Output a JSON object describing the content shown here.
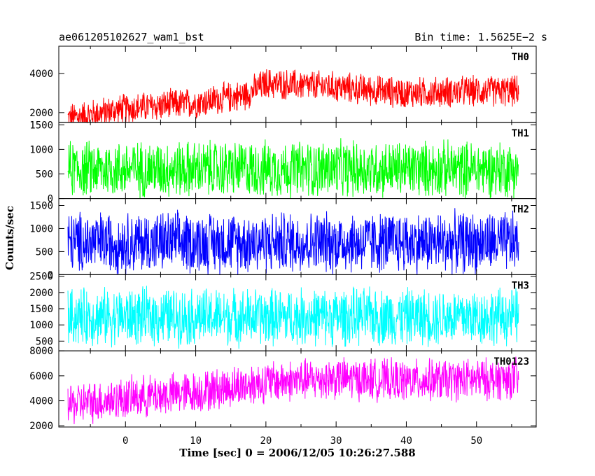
{
  "header": {
    "title": "ae061205102627_wam1_bst",
    "bin_time": "Bin time: 1.5625E−2 s"
  },
  "chart_data": {
    "type": "line",
    "xlabel": "Time [sec] 0 = 2006/12/05 10:26:27.588",
    "ylabel": "Counts/sec",
    "xlim": [
      -9.5,
      58.5
    ],
    "x_ticks": [
      0,
      10,
      20,
      30,
      40,
      50
    ],
    "x_range_data": [
      -8.2,
      56.0
    ],
    "panels": [
      {
        "name": "TH0",
        "color": "#ff0000",
        "ylim": [
          1500,
          5400
        ],
        "y_ticks": [
          2000,
          4000
        ],
        "trend": [
          [
            -8,
            1700
          ],
          [
            0,
            2200
          ],
          [
            10,
            2500
          ],
          [
            17,
            2900
          ],
          [
            20,
            3500
          ],
          [
            30,
            3300
          ],
          [
            40,
            3000
          ],
          [
            50,
            3100
          ],
          [
            56,
            3100
          ]
        ],
        "spread": 900
      },
      {
        "name": "TH1",
        "color": "#00ff00",
        "ylim": [
          0,
          1550
        ],
        "y_ticks": [
          0,
          500,
          1000,
          1500
        ],
        "trend": [
          [
            -8,
            600
          ],
          [
            56,
            600
          ]
        ],
        "spread": 650
      },
      {
        "name": "TH2",
        "color": "#0000ff",
        "ylim": [
          0,
          1650
        ],
        "y_ticks": [
          0,
          500,
          1000,
          1500
        ],
        "trend": [
          [
            -8,
            700
          ],
          [
            56,
            700
          ]
        ],
        "spread": 750
      },
      {
        "name": "TH3",
        "color": "#00ffff",
        "ylim": [
          200,
          2550
        ],
        "y_ticks": [
          500,
          1000,
          1500,
          2000,
          2500
        ],
        "trend": [
          [
            -8,
            1250
          ],
          [
            56,
            1250
          ]
        ],
        "spread": 1000
      },
      {
        "name": "TH0123",
        "color": "#ff00ff",
        "ylim": [
          1900,
          8000
        ],
        "y_ticks": [
          2000,
          4000,
          6000,
          8000
        ],
        "trend": [
          [
            -8,
            3700
          ],
          [
            0,
            4200
          ],
          [
            10,
            4700
          ],
          [
            20,
            5500
          ],
          [
            30,
            5800
          ],
          [
            40,
            5600
          ],
          [
            50,
            5700
          ],
          [
            56,
            5800
          ]
        ],
        "spread": 1900
      }
    ]
  }
}
